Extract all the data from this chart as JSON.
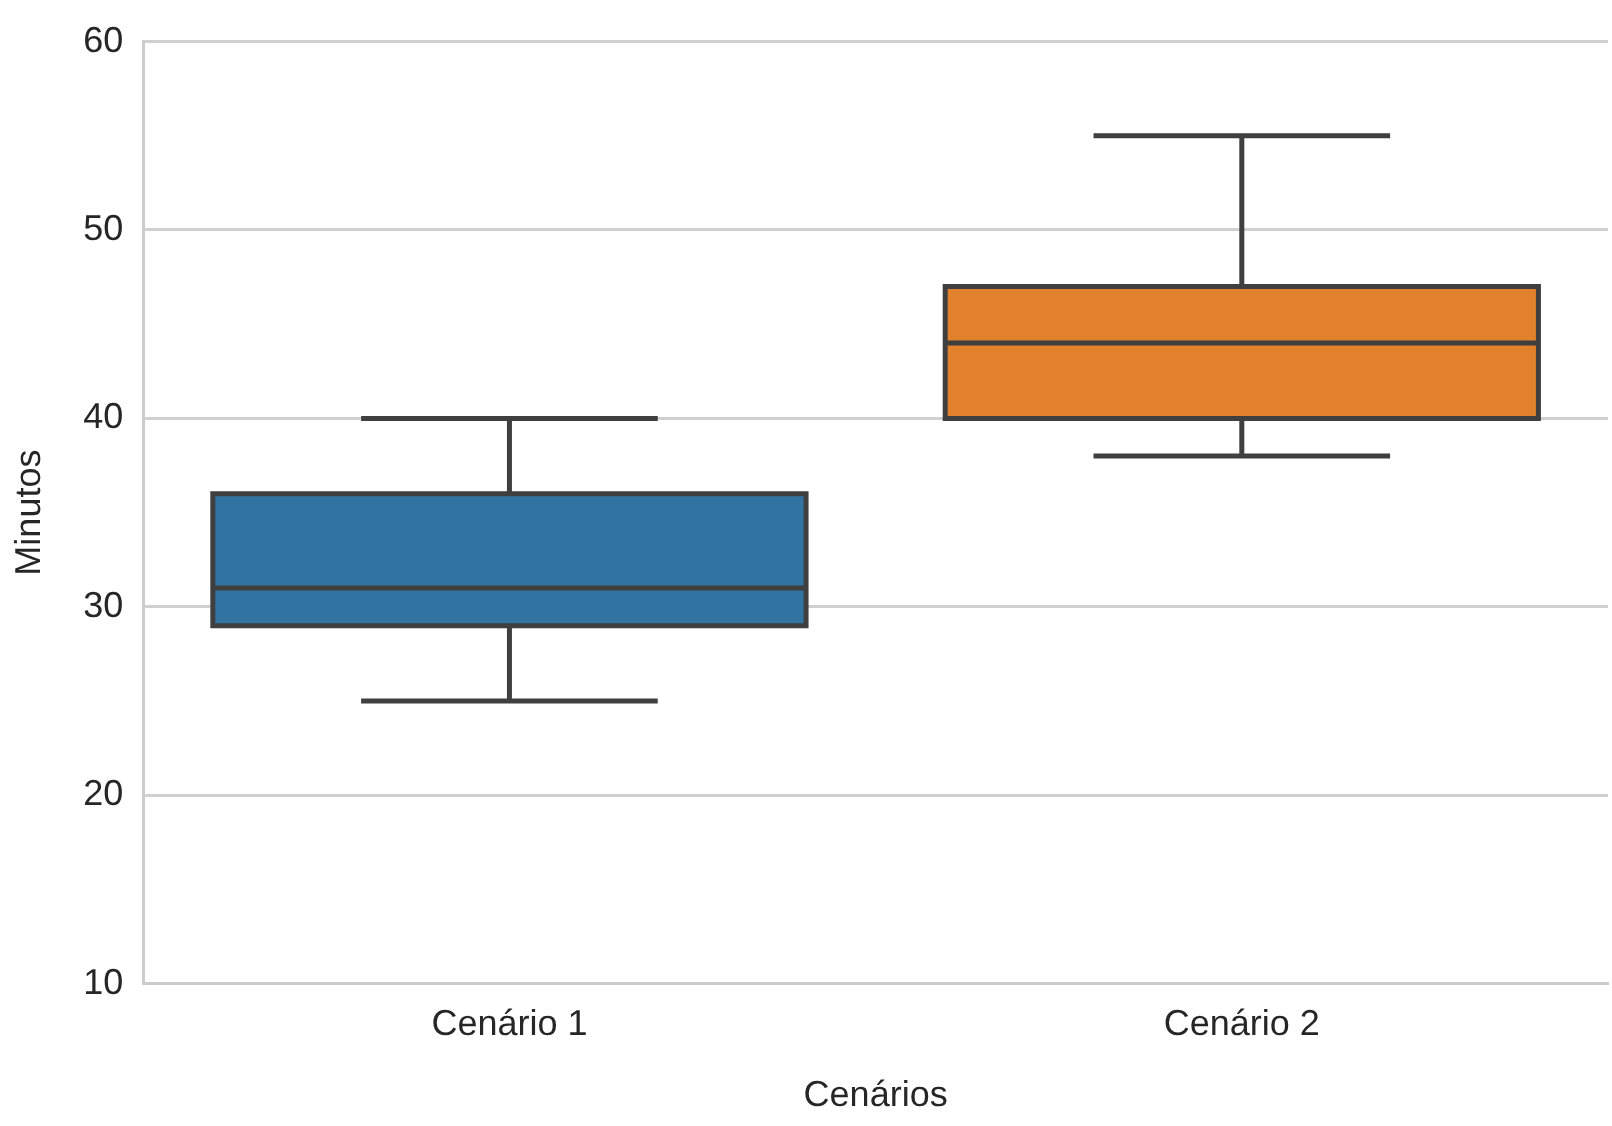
{
  "chart_data": {
    "type": "box",
    "categories": [
      "Cenário 1",
      "Cenário 2"
    ],
    "boxes": [
      {
        "low": 25,
        "q1": 29,
        "median": 31,
        "q3": 36,
        "high": 40
      },
      {
        "low": 38,
        "q1": 40,
        "median": 44,
        "q3": 47,
        "high": 55
      }
    ],
    "colors": [
      "#3274a1",
      "#e1812c"
    ],
    "xlabel": "Cenários",
    "ylabel": "Minutos",
    "ylim": [
      10,
      60
    ],
    "yticks": [
      10,
      20,
      30,
      40,
      50,
      60
    ],
    "grid": "y"
  }
}
